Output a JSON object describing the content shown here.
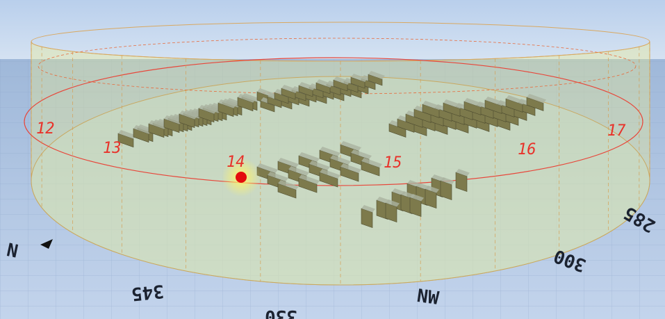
{
  "hour_labels": [
    "12",
    "13",
    "14",
    "15",
    "16",
    "17"
  ],
  "compass_labels": [
    "N",
    "345",
    "330",
    "NW",
    "300",
    "285"
  ]
}
